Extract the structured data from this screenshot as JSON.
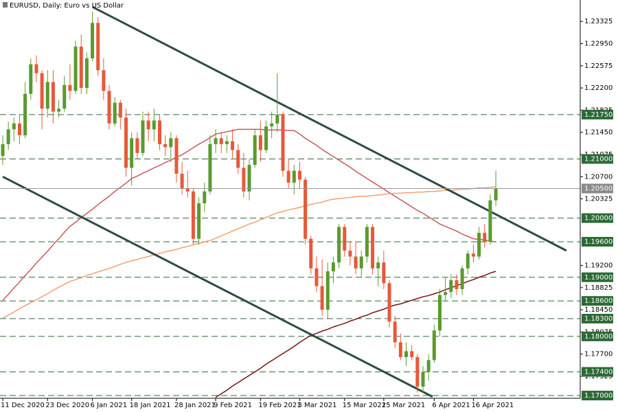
{
  "chart_data": {
    "type": "candlestick",
    "title": "EURUSD, Daily:  Euro vs US Dollar",
    "x": [
      "11 Dec 2020",
      null,
      null,
      null,
      null,
      null,
      null,
      null,
      "23 Dec 2020",
      null,
      null,
      null,
      null,
      null,
      null,
      null,
      "6 Jan 2021",
      null,
      null,
      null,
      null,
      null,
      null,
      "18 Jan 2021",
      null,
      null,
      null,
      null,
      null,
      null,
      null,
      "28 Jan 2021",
      null,
      null,
      null,
      null,
      null,
      null,
      "9 Feb 2021",
      null,
      null,
      null,
      null,
      null,
      null,
      null,
      "19 Feb 2021",
      null,
      null,
      null,
      null,
      null,
      null,
      "3 Mar 2021",
      null,
      null,
      null,
      null,
      null,
      null,
      null,
      "15 Mar 2021",
      null,
      null,
      null,
      null,
      null,
      null,
      "25 Mar 2021",
      null,
      null,
      null,
      null,
      null,
      null,
      null,
      null,
      "6 Apr 2021",
      null,
      null,
      null,
      null,
      null,
      null,
      "16 Apr 2021",
      null,
      null,
      null,
      null
    ],
    "ohlc": [
      [
        1.2105,
        1.214,
        1.209,
        1.2125
      ],
      [
        1.2125,
        1.2163,
        1.2115,
        1.215
      ],
      [
        1.215,
        1.217,
        1.213,
        1.216
      ],
      [
        1.216,
        1.2175,
        1.2125,
        1.214
      ],
      [
        1.214,
        1.223,
        1.2135,
        1.221
      ],
      [
        1.221,
        1.227,
        1.22,
        1.226
      ],
      [
        1.226,
        1.2275,
        1.223,
        1.2245
      ],
      [
        1.2245,
        1.225,
        1.215,
        1.2185
      ],
      [
        1.2185,
        1.225,
        1.217,
        1.223
      ],
      [
        1.223,
        1.225,
        1.216,
        1.218
      ],
      [
        1.218,
        1.22,
        1.217,
        1.2185
      ],
      [
        1.2185,
        1.224,
        1.218,
        1.2225
      ],
      [
        1.2225,
        1.226,
        1.22,
        1.2215
      ],
      [
        1.2215,
        1.23,
        1.221,
        1.229
      ],
      [
        1.229,
        1.231,
        1.221,
        1.222
      ],
      [
        1.222,
        1.228,
        1.221,
        1.227
      ],
      [
        1.227,
        1.2349,
        1.2265,
        1.233
      ],
      [
        1.233,
        1.234,
        1.224,
        1.225
      ],
      [
        1.225,
        1.227,
        1.22,
        1.2215
      ],
      [
        1.2215,
        1.2225,
        1.215,
        1.216
      ],
      [
        1.216,
        1.2205,
        1.2155,
        1.2195
      ],
      [
        1.2195,
        1.22,
        1.215,
        1.217
      ],
      [
        1.217,
        1.2185,
        1.207,
        1.2085
      ],
      [
        1.2085,
        1.2145,
        1.2055,
        1.2135
      ],
      [
        1.2135,
        1.2145,
        1.21,
        1.211
      ],
      [
        1.211,
        1.218,
        1.2105,
        1.2165
      ],
      [
        1.2165,
        1.218,
        1.213,
        1.215
      ],
      [
        1.215,
        1.2185,
        1.213,
        1.2165
      ],
      [
        1.2165,
        1.2175,
        1.2115,
        1.2125
      ],
      [
        1.2125,
        1.214,
        1.2105,
        1.212
      ],
      [
        1.212,
        1.2145,
        1.2095,
        1.2135
      ],
      [
        1.2135,
        1.214,
        1.206,
        1.2075
      ],
      [
        1.2075,
        1.2095,
        1.204,
        1.205
      ],
      [
        1.205,
        1.208,
        1.2035,
        1.2045
      ],
      [
        1.2045,
        1.205,
        1.1955,
        1.1965
      ],
      [
        1.1965,
        1.2035,
        1.1955,
        1.2025
      ],
      [
        1.2025,
        1.206,
        1.201,
        1.2045
      ],
      [
        1.2045,
        1.214,
        1.204,
        1.2125
      ],
      [
        1.2125,
        1.215,
        1.211,
        1.2135
      ],
      [
        1.2135,
        1.2145,
        1.211,
        1.2125
      ],
      [
        1.2125,
        1.214,
        1.211,
        1.213
      ],
      [
        1.213,
        1.215,
        1.21,
        1.2115
      ],
      [
        1.2115,
        1.2125,
        1.2075,
        1.2085
      ],
      [
        1.2085,
        1.211,
        1.2035,
        1.2045
      ],
      [
        1.2045,
        1.21,
        1.203,
        1.209
      ],
      [
        1.209,
        1.215,
        1.2085,
        1.214
      ],
      [
        1.214,
        1.2165,
        1.2095,
        1.2115
      ],
      [
        1.2115,
        1.2165,
        1.211,
        1.2155
      ],
      [
        1.2155,
        1.218,
        1.2135,
        1.216
      ],
      [
        1.216,
        1.2245,
        1.2145,
        1.2175
      ],
      [
        1.2175,
        1.218,
        1.207,
        1.208
      ],
      [
        1.208,
        1.21,
        1.205,
        1.206
      ],
      [
        1.206,
        1.209,
        1.204,
        1.208
      ],
      [
        1.208,
        1.2095,
        1.205,
        1.2065
      ],
      [
        1.2065,
        1.207,
        1.1955,
        1.1965
      ],
      [
        1.1965,
        1.197,
        1.1905,
        1.1915
      ],
      [
        1.1915,
        1.1935,
        1.1875,
        1.1885
      ],
      [
        1.1885,
        1.193,
        1.1835,
        1.1845
      ],
      [
        1.1845,
        1.1925,
        1.183,
        1.191
      ],
      [
        1.191,
        1.1935,
        1.189,
        1.1925
      ],
      [
        1.1925,
        1.199,
        1.1915,
        1.1985
      ],
      [
        1.1985,
        1.199,
        1.1935,
        1.1945
      ],
      [
        1.1945,
        1.196,
        1.192,
        1.1935
      ],
      [
        1.1935,
        1.196,
        1.1905,
        1.1915
      ],
      [
        1.1915,
        1.1945,
        1.19,
        1.1935
      ],
      [
        1.1935,
        1.199,
        1.1925,
        1.1985
      ],
      [
        1.1985,
        1.199,
        1.1905,
        1.1915
      ],
      [
        1.1915,
        1.1935,
        1.1885,
        1.1925
      ],
      [
        1.1925,
        1.1945,
        1.188,
        1.189
      ],
      [
        1.189,
        1.1895,
        1.1815,
        1.1825
      ],
      [
        1.1825,
        1.1835,
        1.178,
        1.179
      ],
      [
        1.179,
        1.1805,
        1.176,
        1.1765
      ],
      [
        1.1765,
        1.179,
        1.175,
        1.1775
      ],
      [
        1.1775,
        1.1785,
        1.176,
        1.1765
      ],
      [
        1.1765,
        1.177,
        1.1705,
        1.1715
      ],
      [
        1.1715,
        1.175,
        1.1705,
        1.174
      ],
      [
        1.174,
        1.177,
        1.1725,
        1.176
      ],
      [
        1.176,
        1.182,
        1.1755,
        1.181
      ],
      [
        1.181,
        1.188,
        1.18,
        1.187
      ],
      [
        1.187,
        1.19,
        1.186,
        1.1875
      ],
      [
        1.1875,
        1.1905,
        1.1865,
        1.1895
      ],
      [
        1.1895,
        1.1905,
        1.187,
        1.188
      ],
      [
        1.188,
        1.192,
        1.187,
        1.1915
      ],
      [
        1.1915,
        1.1945,
        1.1905,
        1.194
      ],
      [
        1.194,
        1.1955,
        1.1925,
        1.1935
      ],
      [
        1.1935,
        1.1985,
        1.193,
        1.1975
      ],
      [
        1.1975,
        1.199,
        1.195,
        1.196
      ],
      [
        1.196,
        1.204,
        1.1955,
        1.203
      ],
      [
        1.203,
        1.208,
        1.202,
        1.205
      ]
    ],
    "up_color": "#5a9a2e",
    "down_color": "#e8583a",
    "series": [
      {
        "color": "#c8585a",
        "values": [
          1.1861,
          1.1871,
          1.1882,
          1.1892,
          1.1903,
          1.1913,
          1.1924,
          1.1934,
          1.1944,
          1.1955,
          1.1965,
          1.1976,
          1.1986,
          1.1993,
          1.2001,
          1.2008,
          1.2015,
          1.2023,
          1.203,
          1.2037,
          1.2045,
          1.2052,
          1.2059,
          1.2067,
          1.2071,
          1.2076,
          1.208,
          1.2085,
          1.2089,
          1.2094,
          1.2098,
          1.2103,
          1.2107,
          1.2113,
          1.2119,
          1.2125,
          1.213,
          1.2136,
          1.2142,
          1.2144,
          1.2146,
          1.2148,
          1.215,
          1.215,
          1.215,
          1.215,
          1.215,
          1.2149,
          1.2149,
          1.2149,
          1.2149,
          1.2148,
          1.2148,
          1.2142,
          1.2135,
          1.2129,
          1.2123,
          1.2116,
          1.211,
          1.2104,
          1.2098,
          1.2092,
          1.2086,
          1.2079,
          1.2073,
          1.2067,
          1.2061,
          1.2055,
          1.2049,
          1.2043,
          1.2037,
          1.2031,
          1.2025,
          1.2019,
          1.2013,
          1.2008,
          1.2002,
          1.1996,
          1.199,
          1.1986,
          1.1982,
          1.1978,
          1.1973,
          1.1969,
          1.1965,
          1.1964,
          1.1963,
          1.1961,
          1.196
        ]
      },
      {
        "color": "#f4a070",
        "values": [
          1.1831,
          1.1836,
          1.1841,
          1.1847,
          1.1852,
          1.1857,
          1.1862,
          1.1867,
          1.1872,
          1.1878,
          1.1883,
          1.1888,
          1.1893,
          1.1896,
          1.1899,
          1.1903,
          1.1906,
          1.1909,
          1.1912,
          1.1915,
          1.1918,
          1.1922,
          1.1925,
          1.1928,
          1.193,
          1.1933,
          1.1935,
          1.1938,
          1.194,
          1.1943,
          1.1945,
          1.1947,
          1.195,
          1.1952,
          1.1955,
          1.1957,
          1.196,
          1.1962,
          1.1966,
          1.197,
          1.1974,
          1.1978,
          1.1982,
          1.1986,
          1.199,
          1.1993,
          1.1997,
          1.2001,
          1.2005,
          1.2009,
          1.2011,
          1.2014,
          1.2016,
          1.2018,
          1.2021,
          1.2023,
          1.2025,
          1.2027,
          1.203,
          1.2032,
          1.2033,
          1.2034,
          1.2035,
          1.2036,
          1.2037,
          1.2037,
          1.2038,
          1.2039,
          1.204,
          1.2041,
          1.2042,
          1.2042,
          1.2043,
          1.2043,
          1.2044,
          1.2044,
          1.2045,
          1.2045,
          1.2046,
          1.2047,
          1.2047,
          1.2048,
          1.2049,
          1.2049,
          1.205,
          1.2051,
          1.2051,
          1.2052,
          1.2053
        ]
      },
      {
        "color": "#7a1010",
        "values": [
          null,
          null,
          null,
          null,
          null,
          null,
          null,
          null,
          null,
          null,
          null,
          null,
          null,
          null,
          null,
          null,
          null,
          null,
          null,
          null,
          null,
          null,
          null,
          null,
          null,
          null,
          null,
          null,
          null,
          null,
          null,
          null,
          null,
          null,
          null,
          null,
          null,
          null,
          1.1697,
          1.1703,
          1.1709,
          1.1716,
          1.1722,
          1.1728,
          1.1734,
          1.174,
          1.1746,
          1.1753,
          1.1759,
          1.1765,
          1.1771,
          1.1777,
          1.1783,
          1.179,
          1.1796,
          1.1802,
          1.1805,
          1.1809,
          1.1812,
          1.1816,
          1.1819,
          1.1822,
          1.1826,
          1.1829,
          1.1833,
          1.1836,
          1.184,
          1.1843,
          1.1846,
          1.185,
          1.1853,
          1.1855,
          1.1858,
          1.1861,
          1.1864,
          1.1867,
          1.1869,
          1.1872,
          1.1875,
          1.1879,
          1.1882,
          1.1886,
          1.1889,
          1.1893,
          1.1896,
          1.19,
          1.1903,
          1.1907,
          1.191
        ]
      }
    ],
    "levels": [
      {
        "value": 1.2175,
        "label": "1.21750"
      },
      {
        "value": 1.21,
        "label": "1.21000"
      },
      {
        "value": 1.2,
        "label": "1.20000"
      },
      {
        "value": 1.196,
        "label": "1.19600"
      },
      {
        "value": 1.19,
        "label": "1.19000"
      },
      {
        "value": 1.186,
        "label": "1.18600"
      },
      {
        "value": 1.183,
        "label": "1.18300"
      },
      {
        "value": 1.18,
        "label": "1.18000"
      },
      {
        "value": 1.174,
        "label": "1.17400"
      },
      {
        "value": 1.17,
        "label": "1.17000"
      }
    ],
    "level_color": "#2d6a36",
    "last_price": {
      "value": 1.205,
      "label": "1.20500"
    },
    "trendlines": [
      {
        "from": [
          16,
          1.2357
        ],
        "to": [
          100.6,
          1.1945
        ]
      },
      {
        "from": [
          0,
          1.207
        ],
        "to": [
          76.7,
          1.1698
        ]
      }
    ],
    "trendline_color": "#2f4a44",
    "ylim": [
      1.16954,
      1.23687
    ],
    "yticks": [
      1.23325,
      {
        "value": 1.2295,
        "label": "1.22950"
      },
      1.22575,
      {
        "value": 1.222,
        "label": "1.22200"
      },
      1.21825,
      {
        "value": 1.2145,
        "label": "1.21450"
      },
      1.21075,
      {
        "value": 1.207,
        "label": "1.20700"
      },
      1.20325,
      {
        "value": 1.192,
        "label": "1.19200"
      },
      1.18825,
      {
        "value": 1.1845,
        "label": "1.18450"
      },
      1.18075,
      {
        "value": 1.177,
        "label": "1.17700"
      },
      1.17325
    ]
  }
}
